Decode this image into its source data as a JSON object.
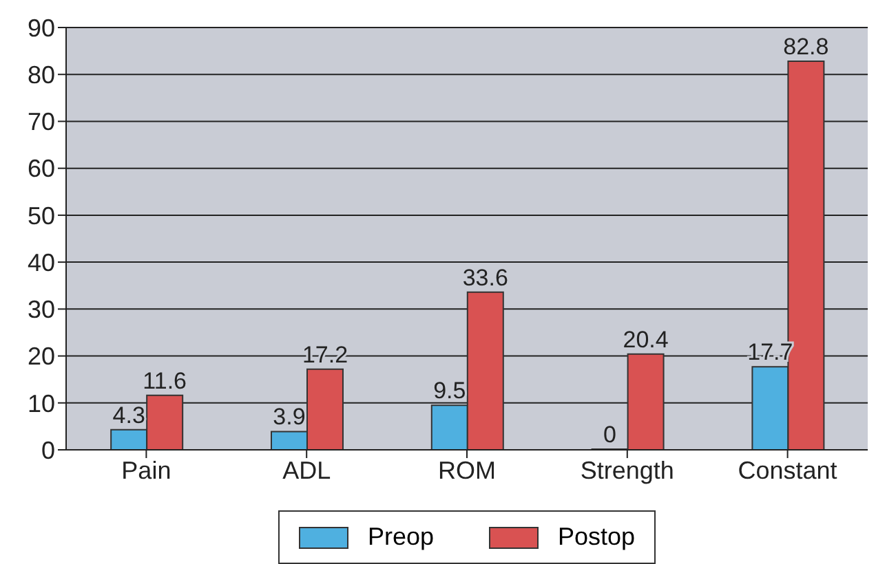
{
  "chart_data": {
    "type": "bar",
    "categories": [
      "Pain",
      "ADL",
      "ROM",
      "Strength",
      "Constant"
    ],
    "series": [
      {
        "name": "Preop",
        "color": "#4fb0e0",
        "values": [
          4.3,
          3.9,
          9.5,
          0,
          17.7
        ]
      },
      {
        "name": "Postop",
        "color": "#d95252",
        "values": [
          11.6,
          17.2,
          33.6,
          20.4,
          82.8
        ]
      }
    ],
    "ylim": [
      0,
      90
    ],
    "yticks": [
      0,
      10,
      20,
      30,
      40,
      50,
      60,
      70,
      80,
      90
    ],
    "grid": "y",
    "legend": "bottom",
    "data_labels": true
  }
}
